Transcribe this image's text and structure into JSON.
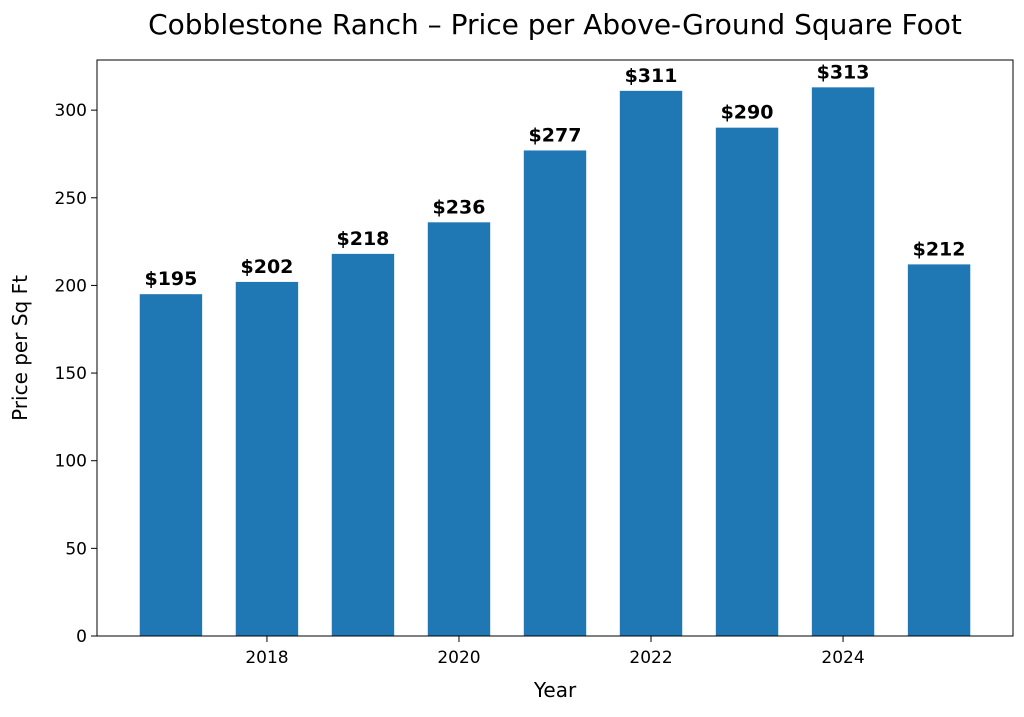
{
  "chart_data": {
    "type": "bar",
    "title": "Cobblestone Ranch – Price per Above-Ground Square Foot",
    "xlabel": "Year",
    "ylabel": "Price per Sq Ft",
    "categories": [
      2017,
      2018,
      2019,
      2020,
      2021,
      2022,
      2023,
      2024,
      2025
    ],
    "values": [
      195,
      202,
      218,
      236,
      277,
      311,
      290,
      313,
      212
    ],
    "data_labels": [
      "$195",
      "$202",
      "$218",
      "$236",
      "$277",
      "$311",
      "$290",
      "$313",
      "$212"
    ],
    "xticks": [
      2018,
      2020,
      2022,
      2024
    ],
    "yticks": [
      0,
      50,
      100,
      150,
      200,
      250,
      300
    ],
    "xlim": [
      2016.23,
      2025.77
    ],
    "ylim": [
      0,
      328.6
    ],
    "bar_width": 0.65,
    "bar_color": "#1f77b4",
    "grid": false,
    "legend": "none"
  }
}
